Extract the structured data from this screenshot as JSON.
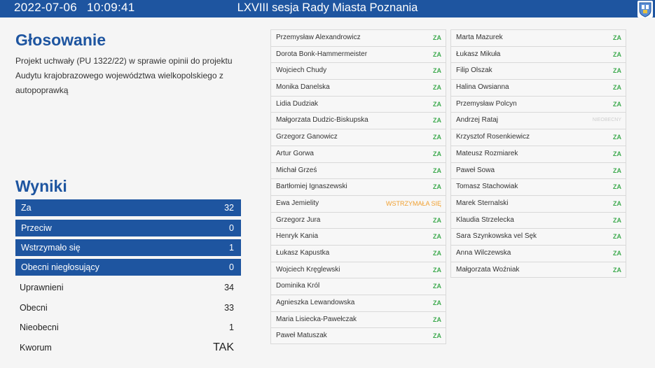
{
  "header": {
    "date": "2022-07-06",
    "time": "10:09:41",
    "title": "LXVIII sesja Rady Miasta Poznania"
  },
  "voting": {
    "heading": "Głosowanie",
    "description": "Projekt uchwały (PU 1322/22) w sprawie opinii do projektu Audytu krajobrazowego województwa wielkopolskiego z autopoprawką"
  },
  "results": {
    "heading": "Wyniki",
    "bars": [
      {
        "label": "Za",
        "value": "32"
      },
      {
        "label": "Przeciw",
        "value": "0"
      },
      {
        "label": "Wstrzymało się",
        "value": "1"
      },
      {
        "label": "Obecni niegłosujący",
        "value": "0"
      }
    ],
    "rows": [
      {
        "label": "Uprawnieni",
        "value": "34"
      },
      {
        "label": "Obecni",
        "value": "33"
      },
      {
        "label": "Nieobecni",
        "value": "1"
      },
      {
        "label": "Kworum",
        "value": "TAK"
      }
    ]
  },
  "votes_col1": [
    {
      "name": "Przemysław Alexandrowicz",
      "vote": "ZA"
    },
    {
      "name": "Dorota Bonk-Hammermeister",
      "vote": "ZA"
    },
    {
      "name": "Wojciech Chudy",
      "vote": "ZA"
    },
    {
      "name": "Monika Danelska",
      "vote": "ZA"
    },
    {
      "name": "Lidia Dudziak",
      "vote": "ZA"
    },
    {
      "name": "Małgorzata Dudzic-Biskupska",
      "vote": "ZA"
    },
    {
      "name": "Grzegorz Ganowicz",
      "vote": "ZA"
    },
    {
      "name": "Artur Gorwa",
      "vote": "ZA"
    },
    {
      "name": "Michał Grześ",
      "vote": "ZA"
    },
    {
      "name": "Bartłomiej Ignaszewski",
      "vote": "ZA"
    },
    {
      "name": "Ewa Jemielity",
      "vote": "WSTRZYMAŁA SIĘ"
    },
    {
      "name": "Grzegorz Jura",
      "vote": "ZA"
    },
    {
      "name": "Henryk Kania",
      "vote": "ZA"
    },
    {
      "name": "Łukasz Kapustka",
      "vote": "ZA"
    },
    {
      "name": "Wojciech Kręglewski",
      "vote": "ZA"
    },
    {
      "name": "Dominika Król",
      "vote": "ZA"
    },
    {
      "name": "Agnieszka Lewandowska",
      "vote": "ZA"
    },
    {
      "name": "Maria Lisiecka-Pawełczak",
      "vote": "ZA"
    },
    {
      "name": "Paweł Matuszak",
      "vote": "ZA"
    }
  ],
  "votes_col2": [
    {
      "name": "Marta Mazurek",
      "vote": "ZA"
    },
    {
      "name": "Łukasz Mikuła",
      "vote": "ZA"
    },
    {
      "name": "Filip Olszak",
      "vote": "ZA"
    },
    {
      "name": "Halina Owsianna",
      "vote": "ZA"
    },
    {
      "name": "Przemysław Polcyn",
      "vote": "ZA"
    },
    {
      "name": "Andrzej Rataj",
      "vote": "NIEOBECNY"
    },
    {
      "name": "Krzysztof Rosenkiewicz",
      "vote": "ZA"
    },
    {
      "name": "Mateusz Rozmiarek",
      "vote": "ZA"
    },
    {
      "name": "Paweł Sowa",
      "vote": "ZA"
    },
    {
      "name": "Tomasz Stachowiak",
      "vote": "ZA"
    },
    {
      "name": "Marek Sternalski",
      "vote": "ZA"
    },
    {
      "name": "Klaudia Strzelecka",
      "vote": "ZA"
    },
    {
      "name": "Sara Szynkowska vel Sęk",
      "vote": "ZA"
    },
    {
      "name": "Anna Wilczewska",
      "vote": "ZA"
    },
    {
      "name": "Małgorzata Woźniak",
      "vote": "ZA"
    }
  ],
  "colors": {
    "brand": "#1e55a0",
    "za": "#3daa4e",
    "wstrzymal": "#f0a030",
    "nieobecny": "#cfcfcf"
  },
  "icons": {
    "crest": "poznan-crest-icon"
  }
}
